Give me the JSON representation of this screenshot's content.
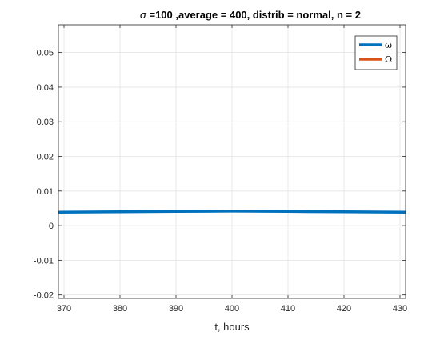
{
  "chart_data": {
    "type": "line",
    "title_sigma": "σ",
    "title_rest": " =100 ,average = 400, distrib = normal, n = 2",
    "xlabel": "t, hours",
    "ylabel": "",
    "xlim": [
      369,
      431
    ],
    "ylim": [
      -0.021,
      0.058
    ],
    "x_ticks": [
      370,
      380,
      390,
      400,
      410,
      420,
      430
    ],
    "y_ticks": [
      -0.02,
      -0.01,
      0,
      0.01,
      0.02,
      0.03,
      0.04,
      0.05
    ],
    "y_tick_labels": [
      "-0.02",
      "-0.01",
      "0",
      "0.01",
      "0.02",
      "0.03",
      "0.04",
      "0.05"
    ],
    "grid": true,
    "legend_position": "top-right",
    "series": [
      {
        "name": "ω",
        "color": "#0072BD",
        "x": [
          369,
          380,
          390,
          400,
          410,
          420,
          431
        ],
        "y": [
          0.0039,
          0.004,
          0.0041,
          0.0042,
          0.0041,
          0.004,
          0.0039
        ]
      },
      {
        "name": "Ω",
        "color": "#D95319",
        "x": [],
        "y": []
      }
    ]
  }
}
